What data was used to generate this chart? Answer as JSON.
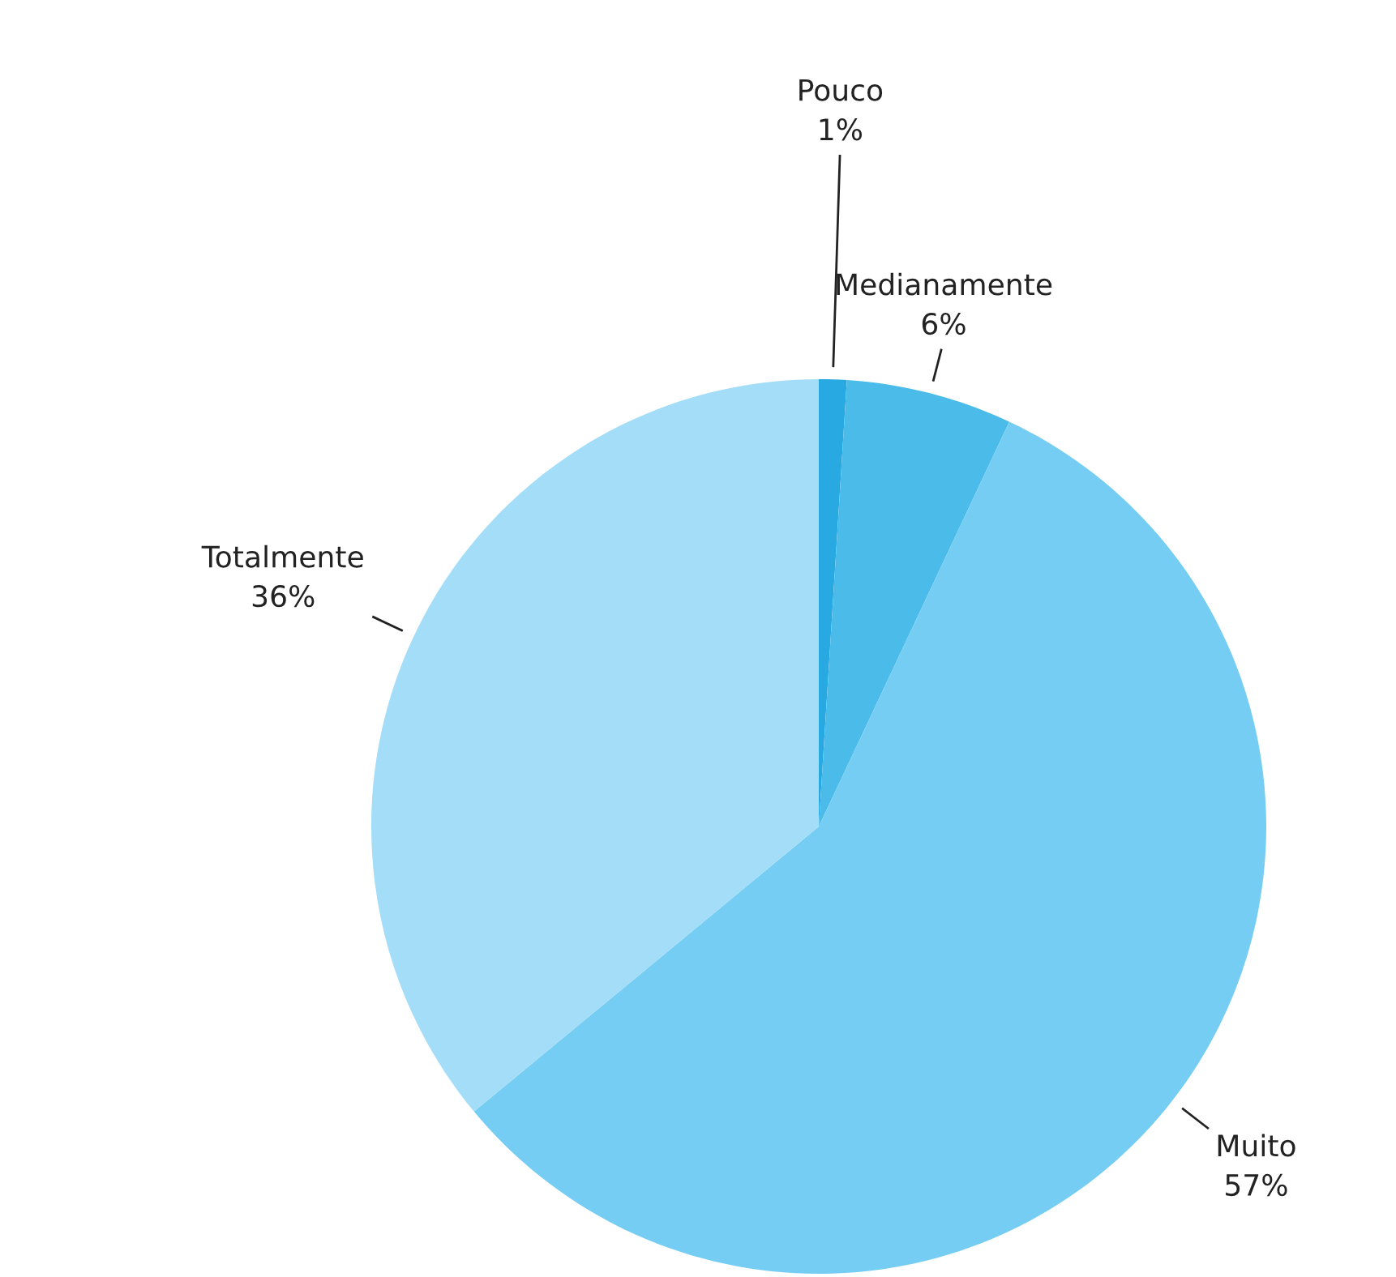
{
  "chart_data": {
    "type": "pie",
    "categories": [
      "Pouco",
      "Medianamente",
      "Muito",
      "Totalmente"
    ],
    "values": [
      1,
      6,
      57,
      36
    ],
    "colors": [
      "#29a9e1",
      "#4bbbea",
      "#76cdf3",
      "#a4ddf7"
    ],
    "value_labels": [
      "1%",
      "6%",
      "57%",
      "36%"
    ]
  }
}
